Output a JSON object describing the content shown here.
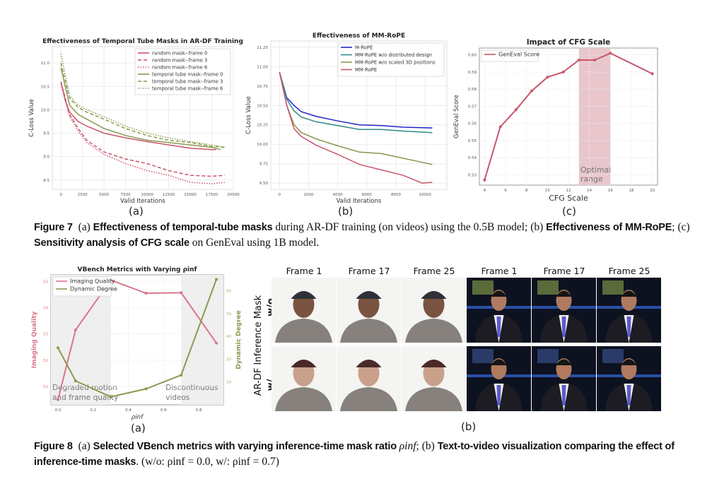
{
  "figure7": {
    "panel_labels": [
      "(a)",
      "(b)",
      "(c)"
    ],
    "caption": {
      "label": "Figure 7",
      "a": "(a)",
      "a_bold": "Effectiveness of temporal-tube masks",
      "a_rest": " during AR-DF training (on videos) using the 0.5B model; ",
      "b": "(b)",
      "b_bold": "Effectiveness of MM-RoPE",
      "b_rest": "; ",
      "c": "(c)",
      "c_bold": "Sensitivity analysis of CFG scale",
      "c_rest": " on GenEval using 1B model."
    }
  },
  "figure8": {
    "panel_labels": [
      "(a)",
      "(b)"
    ],
    "frames": [
      "Frame 1",
      "Frame 17",
      "Frame 25",
      "Frame 1",
      "Frame 17",
      "Frame 25"
    ],
    "row_label_top": "w/o",
    "row_label_mid": "AR-DF Inference Mask",
    "row_label_bottom": "w/",
    "caption": {
      "label": "Figure 8",
      "a": "(a)",
      "a_bold": "Selected VBench metrics with varying inference-time mask ratio",
      "rho": "ρinf",
      "sep": "; ",
      "b": "(b)",
      "b_bold": "Text-to-video visualization comparing the effect of inference-time masks",
      "tail": ". (w/o: ρinf = 0.0, w/: ρinf = 0.7)"
    }
  },
  "colors": {
    "red": "#c9566b",
    "olive": "#8a9a4f",
    "blue": "#2424c8",
    "teal": "#2f8a86",
    "olive_b": "#8c9650",
    "shade_red": "#e8c6cc",
    "shade_gray": "#efefef"
  },
  "chart_data": [
    {
      "type": "line",
      "title": "Effectiveness of Temporal Tube Masks in AR-DF Training",
      "xlabel": "Valid Iterations",
      "ylabel": "C-Loss Value",
      "xlim": [
        -1000,
        20000
      ],
      "ylim": [
        8.3,
        11.35
      ],
      "xticks": [
        0,
        2500,
        5000,
        7500,
        10000,
        12500,
        15000,
        17500,
        20000
      ],
      "yticks": [
        8.5,
        9.0,
        9.5,
        10.0,
        10.5,
        11.0
      ],
      "grid": true,
      "legend": "top-right",
      "series": [
        {
          "name": "random mask--frame 0",
          "color": "#c9566b",
          "dash": "solid",
          "points": [
            [
              0,
              10.6
            ],
            [
              500,
              10.2
            ],
            [
              1000,
              9.95
            ],
            [
              2000,
              9.75
            ],
            [
              3000,
              9.65
            ],
            [
              5000,
              9.5
            ],
            [
              7500,
              9.4
            ],
            [
              10000,
              9.32
            ],
            [
              12500,
              9.25
            ],
            [
              15000,
              9.18
            ],
            [
              17500,
              9.15
            ],
            [
              18000,
              9.15
            ]
          ]
        },
        {
          "name": "random mask--frame 3",
          "color": "#c9566b",
          "dash": "dashed",
          "points": [
            [
              0,
              10.6
            ],
            [
              1000,
              9.9
            ],
            [
              2000,
              9.6
            ],
            [
              3000,
              9.35
            ],
            [
              5000,
              9.1
            ],
            [
              7500,
              8.95
            ],
            [
              10000,
              8.85
            ],
            [
              12500,
              8.7
            ],
            [
              15000,
              8.6
            ],
            [
              17500,
              8.58
            ],
            [
              19000,
              8.6
            ]
          ]
        },
        {
          "name": "random mask--frame 6",
          "color": "#c9566b",
          "dash": "dotted",
          "points": [
            [
              0,
              10.55
            ],
            [
              1000,
              9.85
            ],
            [
              2000,
              9.55
            ],
            [
              3000,
              9.3
            ],
            [
              5000,
              9.05
            ],
            [
              7500,
              8.85
            ],
            [
              10000,
              8.7
            ],
            [
              12500,
              8.6
            ],
            [
              15000,
              8.45
            ],
            [
              17500,
              8.42
            ],
            [
              19000,
              8.45
            ]
          ]
        },
        {
          "name": "temporal tube mask--frame 0",
          "color": "#8a9a4f",
          "dash": "solid",
          "points": [
            [
              0,
              10.9
            ],
            [
              1000,
              10.1
            ],
            [
              2000,
              9.9
            ],
            [
              3000,
              9.8
            ],
            [
              5000,
              9.6
            ],
            [
              7500,
              9.45
            ],
            [
              10000,
              9.35
            ],
            [
              12500,
              9.3
            ],
            [
              15000,
              9.25
            ],
            [
              17500,
              9.2
            ],
            [
              18500,
              9.15
            ]
          ]
        },
        {
          "name": "temporal tube mask--frame 3",
          "color": "#8a9a4f",
          "dash": "dashed",
          "points": [
            [
              0,
              11.0
            ],
            [
              1000,
              10.25
            ],
            [
              2000,
              10.05
            ],
            [
              3000,
              9.95
            ],
            [
              5000,
              9.8
            ],
            [
              7500,
              9.6
            ],
            [
              10000,
              9.45
            ],
            [
              12500,
              9.35
            ],
            [
              15000,
              9.3
            ],
            [
              17500,
              9.22
            ],
            [
              19000,
              9.2
            ]
          ]
        },
        {
          "name": "temporal tube mask--frame 6",
          "color": "#8a9a4f",
          "dash": "dotted",
          "points": [
            [
              0,
              11.2
            ],
            [
              1000,
              10.3
            ],
            [
              2000,
              10.1
            ],
            [
              3000,
              10.0
            ],
            [
              5000,
              9.85
            ],
            [
              7500,
              9.65
            ],
            [
              10000,
              9.5
            ],
            [
              12500,
              9.4
            ],
            [
              15000,
              9.32
            ],
            [
              17500,
              9.25
            ],
            [
              19000,
              9.2
            ]
          ]
        }
      ]
    },
    {
      "type": "line",
      "title": "Effectiveness of MM-RoPE",
      "xlabel": "Valid Iterations",
      "ylabel": "C-Loss Value",
      "xlim": [
        -600,
        11500
      ],
      "ylim": [
        9.42,
        11.33
      ],
      "xticks": [
        0,
        2000,
        4000,
        6000,
        8000,
        10000
      ],
      "yticks": [
        9.5,
        9.75,
        10.0,
        10.25,
        10.5,
        10.75,
        11.0,
        11.25
      ],
      "ytick_format": 2,
      "grid": true,
      "legend": "top-right",
      "series": [
        {
          "name": "M-RoPE",
          "color": "#2424c8",
          "dash": "solid",
          "points": [
            [
              0,
              10.93
            ],
            [
              500,
              10.6
            ],
            [
              1000,
              10.5
            ],
            [
              1500,
              10.42
            ],
            [
              2500,
              10.36
            ],
            [
              4000,
              10.3
            ],
            [
              5500,
              10.25
            ],
            [
              7000,
              10.24
            ],
            [
              8500,
              10.22
            ],
            [
              10500,
              10.21
            ]
          ]
        },
        {
          "name": "MM-RoPE w/o distributed design",
          "color": "#2f8a86",
          "dash": "solid",
          "points": [
            [
              0,
              10.93
            ],
            [
              500,
              10.58
            ],
            [
              1000,
              10.43
            ],
            [
              1500,
              10.35
            ],
            [
              2500,
              10.29
            ],
            [
              4000,
              10.24
            ],
            [
              5500,
              10.19
            ],
            [
              7000,
              10.19
            ],
            [
              8500,
              10.17
            ],
            [
              10500,
              10.15
            ]
          ]
        },
        {
          "name": "MM-RoPE w/o scaled 3D positions",
          "color": "#8c9650",
          "dash": "solid",
          "points": [
            [
              0,
              10.93
            ],
            [
              500,
              10.5
            ],
            [
              1000,
              10.25
            ],
            [
              1500,
              10.15
            ],
            [
              2500,
              10.07
            ],
            [
              4000,
              9.98
            ],
            [
              5500,
              9.9
            ],
            [
              7000,
              9.88
            ],
            [
              8500,
              9.82
            ],
            [
              10500,
              9.74
            ]
          ]
        },
        {
          "name": "MM-RoPE",
          "color": "#c9566b",
          "dash": "solid",
          "points": [
            [
              0,
              10.93
            ],
            [
              500,
              10.5
            ],
            [
              1000,
              10.2
            ],
            [
              1500,
              10.1
            ],
            [
              2500,
              9.99
            ],
            [
              4000,
              9.87
            ],
            [
              5500,
              9.74
            ],
            [
              7000,
              9.67
            ],
            [
              8500,
              9.6
            ],
            [
              9800,
              9.5
            ],
            [
              10500,
              9.51
            ]
          ]
        }
      ]
    },
    {
      "type": "line",
      "title": "Impact of CFG Scale",
      "xlabel": "CFG Scale",
      "ylabel": "GenEval Score",
      "xlim": [
        3.5,
        20.5
      ],
      "ylim": [
        0.524,
        0.604
      ],
      "xticks": [
        4,
        6,
        8,
        10,
        12,
        14,
        16,
        18,
        20
      ],
      "yticks": [
        0.53,
        0.54,
        0.55,
        0.56,
        0.57,
        0.58,
        0.59,
        0.6
      ],
      "ytick_format": 2,
      "grid": true,
      "legend": "top-left",
      "shaded_region": {
        "x": [
          13,
          16
        ],
        "label_line1": "Optimal",
        "label_line2": "range"
      },
      "series": [
        {
          "name": "GenEval Score",
          "color": "#c9566b",
          "dash": "solid",
          "markers": true,
          "points": [
            [
              4,
              0.527
            ],
            [
              5.5,
              0.558
            ],
            [
              7,
              0.568
            ],
            [
              8.5,
              0.579
            ],
            [
              10,
              0.587
            ],
            [
              11.5,
              0.59
            ],
            [
              13,
              0.597
            ],
            [
              14.5,
              0.597
            ],
            [
              16,
              0.601
            ],
            [
              20,
              0.589
            ]
          ]
        }
      ]
    },
    {
      "type": "line",
      "title": "VBench Metrics with Varying ρinf",
      "xlabel": "ρinf",
      "ylabel": "Imaging Quality",
      "ylabel_right": "Dynamic Degree",
      "xlim": [
        -0.04,
        0.94
      ],
      "ylim": [
        50.3,
        55.25
      ],
      "ylim_right": [
        10,
        67
      ],
      "xticks": [
        0.0,
        0.2,
        0.4,
        0.6,
        0.8
      ],
      "yticks": [
        51,
        52,
        53,
        54,
        55
      ],
      "yticks_right": [
        20,
        30,
        40,
        50,
        60
      ],
      "grid": true,
      "legend": "top-left",
      "shaded_regions": [
        {
          "x": [
            -0.04,
            0.3
          ],
          "label_line1": "Degraded motion",
          "label_line2": "and frame quality"
        },
        {
          "x": [
            0.7,
            0.94
          ],
          "label_line1": "Discontinuous",
          "label_line2": "videos"
        }
      ],
      "series": [
        {
          "name": "Imaging Quality",
          "axis": "left",
          "color": "#d9768a",
          "markers": true,
          "x": [
            0,
            0.1,
            0.3,
            0.5,
            0.7,
            0.9
          ],
          "values": [
            50.5,
            53.15,
            55.05,
            54.55,
            54.57,
            52.65
          ]
        },
        {
          "name": "Dynamic Degree",
          "axis": "right",
          "color": "#8a9a4f",
          "markers": true,
          "x": [
            0,
            0.1,
            0.3,
            0.5,
            0.7,
            0.9
          ],
          "values": [
            35,
            20.5,
            13.5,
            17,
            23,
            65
          ]
        }
      ]
    }
  ]
}
